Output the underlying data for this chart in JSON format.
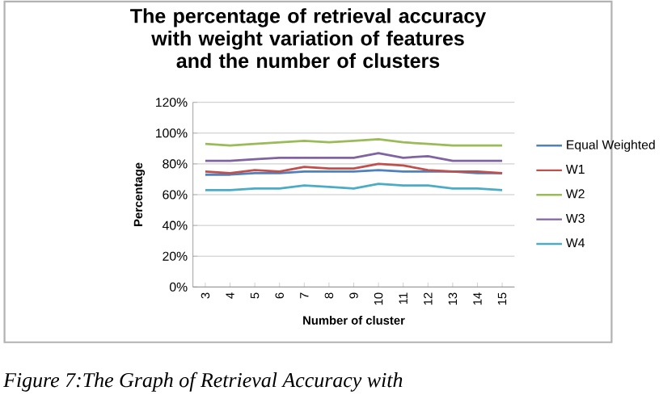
{
  "chart_data": {
    "type": "line",
    "title": "The percentage of retrieval accuracy with weight variation of features and the number of clusters",
    "xlabel": "Number of cluster",
    "ylabel": "Percentage",
    "categories": [
      "3",
      "4",
      "5",
      "6",
      "7",
      "8",
      "9",
      "10",
      "11",
      "12",
      "13",
      "14",
      "15"
    ],
    "series": [
      {
        "name": "Equal Weighted",
        "color": "#4f81bd",
        "values": [
          73,
          73,
          74,
          74,
          75,
          75,
          75,
          76,
          75,
          75,
          75,
          74,
          74
        ]
      },
      {
        "name": "W1",
        "color": "#c0504d",
        "values": [
          75,
          74,
          76,
          75,
          78,
          77,
          77,
          80,
          79,
          76,
          75,
          75,
          74
        ]
      },
      {
        "name": "W2",
        "color": "#9bbb59",
        "values": [
          93,
          92,
          93,
          94,
          95,
          94,
          95,
          96,
          94,
          93,
          92,
          92,
          92
        ]
      },
      {
        "name": "W3",
        "color": "#8064a2",
        "values": [
          82,
          82,
          83,
          84,
          84,
          84,
          84,
          87,
          84,
          85,
          82,
          82,
          82
        ]
      },
      {
        "name": "W4",
        "color": "#4bacc6",
        "values": [
          63,
          63,
          64,
          64,
          66,
          65,
          64,
          67,
          66,
          66,
          64,
          64,
          63
        ]
      }
    ],
    "ylim": [
      0,
      120
    ],
    "yticks": [
      {
        "value": 0,
        "label": "0%"
      },
      {
        "value": 20,
        "label": "20%"
      },
      {
        "value": 40,
        "label": "40%"
      },
      {
        "value": 60,
        "label": "60%"
      },
      {
        "value": 80,
        "label": "80%"
      },
      {
        "value": 100,
        "label": "100%"
      },
      {
        "value": 120,
        "label": "120%"
      }
    ],
    "grid": "y",
    "legend": "right",
    "marker": "none",
    "line_style": "solid",
    "annotations": [
      "Figure 7:The Graph of Retrieval Accuracy with"
    ]
  }
}
